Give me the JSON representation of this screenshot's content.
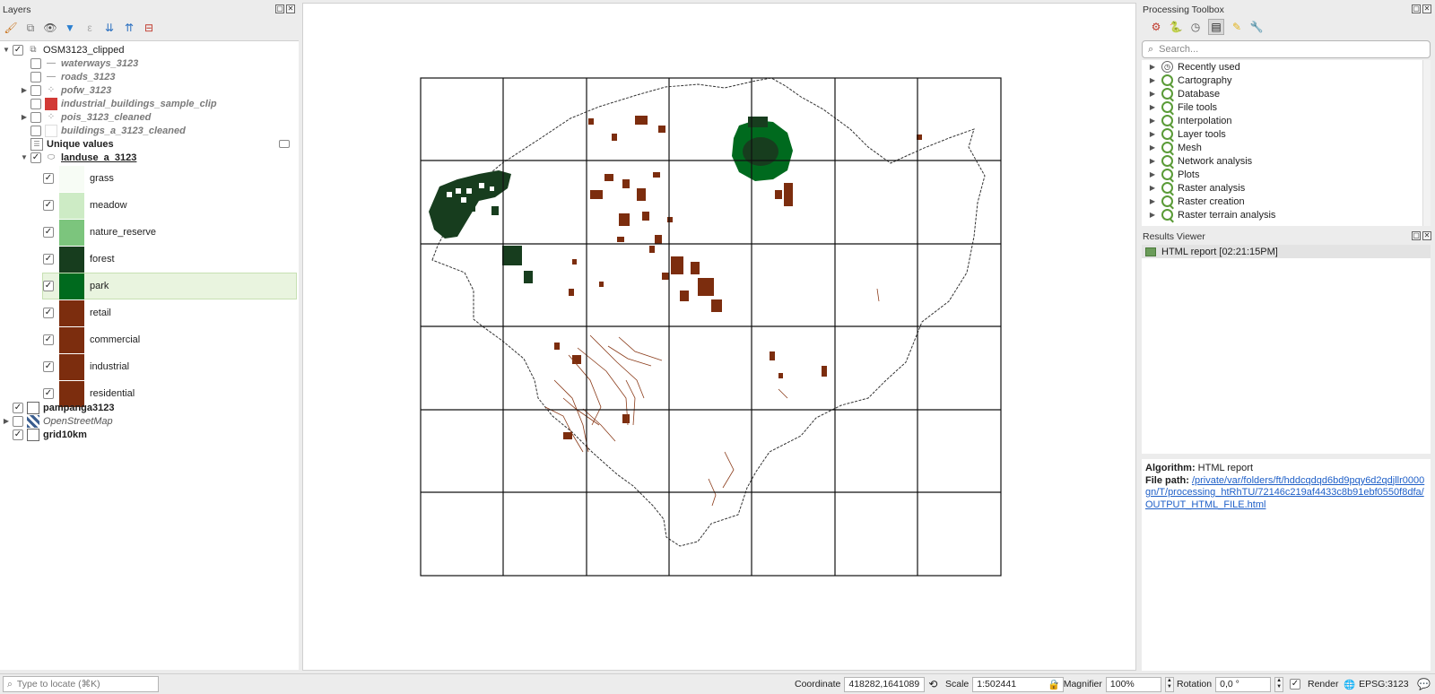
{
  "layers_panel": {
    "title": "Layers",
    "layers": [
      {
        "name": "OSM3123_clipped",
        "checked": true,
        "style": "normal",
        "expand": "down"
      },
      {
        "name": "waterways_3123",
        "checked": false,
        "style": "gray"
      },
      {
        "name": "roads_3123",
        "checked": false,
        "style": "gray"
      },
      {
        "name": "pofw_3123",
        "checked": false,
        "style": "gray",
        "expand": "right"
      },
      {
        "name": "industrial_buildings_sample_clip",
        "checked": false,
        "style": "gray"
      },
      {
        "name": "pois_3123_cleaned",
        "checked": false,
        "style": "gray",
        "expand": "right"
      },
      {
        "name": "buildings_a_3123_cleaned",
        "checked": false,
        "style": "gray"
      },
      {
        "name": "Unique values",
        "style": "bold"
      },
      {
        "name": "landuse_a_3123",
        "checked": true,
        "style": "bold-underline",
        "expand": "down"
      },
      {
        "name": "pampanga3123",
        "checked": true,
        "style": "bold"
      },
      {
        "name": "OpenStreetMap",
        "checked": false,
        "style": "italic",
        "expand": "right"
      },
      {
        "name": "grid10km",
        "checked": true,
        "style": "bold"
      }
    ],
    "legend": [
      {
        "label": "grass",
        "color": "#f7fcf5"
      },
      {
        "label": "meadow",
        "color": "#cdebc5"
      },
      {
        "label": "nature_reserve",
        "color": "#7cc57d"
      },
      {
        "label": "forest",
        "color": "#173d1e"
      },
      {
        "label": "park",
        "color": "#006a1e"
      },
      {
        "label": "retail",
        "color": "#7c2d0e"
      },
      {
        "label": "commercial",
        "color": "#7c2d0e"
      },
      {
        "label": "industrial",
        "color": "#7c2d0e"
      },
      {
        "label": "residential",
        "color": "#7c2d0e"
      }
    ]
  },
  "toolbox": {
    "title": "Processing Toolbox",
    "search_placeholder": "Search...",
    "items": [
      "Recently used",
      "Cartography",
      "Database",
      "File tools",
      "Interpolation",
      "Layer tools",
      "Mesh",
      "Network analysis",
      "Plots",
      "Raster analysis",
      "Raster creation",
      "Raster terrain analysis"
    ]
  },
  "results_viewer": {
    "title": "Results Viewer",
    "item": "HTML report [02:21:15PM]",
    "algorithm_label": "Algorithm:",
    "algorithm_value": "HTML report",
    "file_path_label": "File path:",
    "file_path": "/private/var/folders/ft/hddcqdqd6bd9pqy6d2qdjllr0000gn/T/processing_htRhTU/72146c219af4433c8b91ebf0550f8dfa/OUTPUT_HTML_FILE.html"
  },
  "status_bar": {
    "locate_placeholder": "Type to locate (⌘K)",
    "coordinate_label": "Coordinate",
    "coordinate_value": "418282,1641089",
    "scale_label": "Scale",
    "scale_value": "1:502441",
    "magnifier_label": "Magnifier",
    "magnifier_value": "100%",
    "rotation_label": "Rotation",
    "rotation_value": "0,0 °",
    "render_label": "Render",
    "crs": "EPSG:3123"
  },
  "colors": {
    "forest": "#173d1e",
    "park": "#006a1e",
    "built": "#7c2d0e",
    "selection": "#e9f4df"
  }
}
